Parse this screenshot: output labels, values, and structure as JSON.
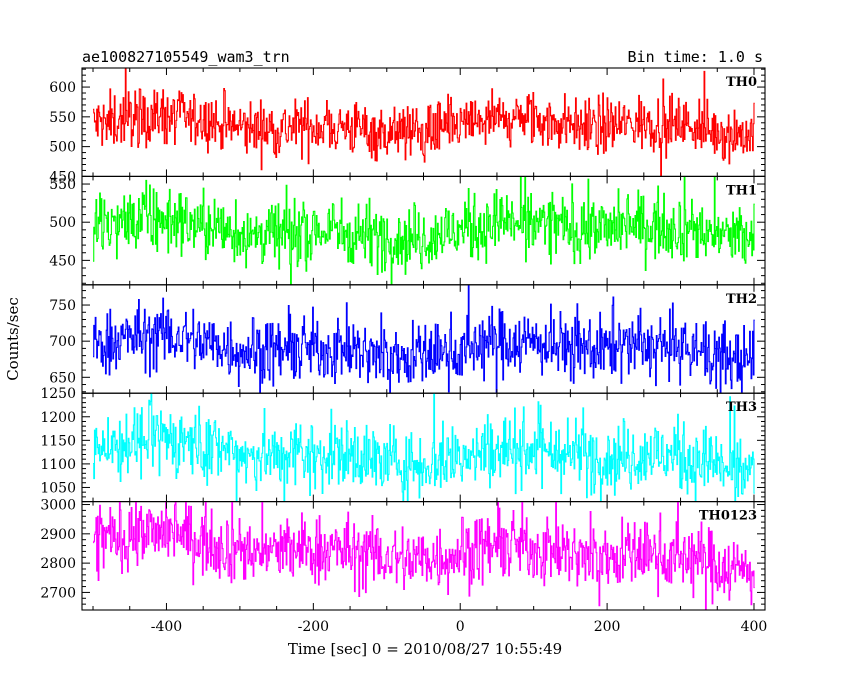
{
  "header": {
    "left": "ae100827105549_wam3_trn",
    "right": "Bin time: 1.0 s"
  },
  "chart_data": {
    "type": "line",
    "xlabel": "Time [sec] 0 = 2010/08/27 10:55:49",
    "ylabel": "Counts/sec",
    "xlim": [
      -515,
      415
    ],
    "xticks": [
      -400,
      -200,
      0,
      200,
      400
    ],
    "x_start": -500,
    "x_end": 400,
    "bin_time": 1.0,
    "panels": [
      {
        "name": "TH0",
        "color": "#ff0000",
        "ylim": [
          450,
          632
        ],
        "yticks": [
          450,
          500,
          550,
          600
        ],
        "mean": 535,
        "scatter": 24,
        "trend": -5
      },
      {
        "name": "TH1",
        "color": "#00ff00",
        "ylim": [
          418,
          560
        ],
        "yticks": [
          450,
          500,
          550
        ],
        "mean": 490,
        "scatter": 22,
        "trend": 0
      },
      {
        "name": "TH2",
        "color": "#0000ff",
        "ylim": [
          628,
          778
        ],
        "yticks": [
          650,
          700,
          750
        ],
        "mean": 690,
        "scatter": 23,
        "trend": -10
      },
      {
        "name": "TH3",
        "color": "#00ffff",
        "ylim": [
          1020,
          1250
        ],
        "yticks": [
          1050,
          1100,
          1150,
          1200,
          1250
        ],
        "mean": 1120,
        "scatter": 38,
        "trend": -30
      },
      {
        "name": "TH0123",
        "color": "#ff00ff",
        "ylim": [
          2640,
          3010
        ],
        "yticks": [
          2700,
          2800,
          2900,
          3000
        ],
        "mean": 2840,
        "scatter": 60,
        "trend": -70
      }
    ]
  }
}
